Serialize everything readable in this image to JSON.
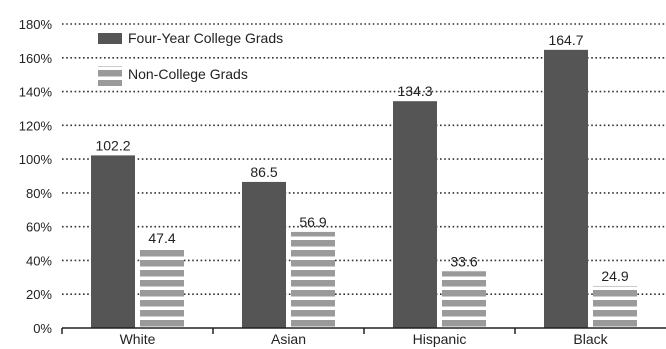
{
  "chart_data": {
    "type": "bar",
    "categories": [
      "White",
      "Asian",
      "Hispanic",
      "Black"
    ],
    "series": [
      {
        "name": "Four-Year College Grads",
        "values": [
          102.2,
          86.5,
          134.3,
          164.7
        ],
        "labels": [
          "102.2",
          "86.5",
          "134.3",
          "164.7"
        ],
        "color": "#555555",
        "pattern": "solid"
      },
      {
        "name": "Non-College Grads",
        "values": [
          47.4,
          56.9,
          33.6,
          24.9
        ],
        "labels": [
          "47.4",
          "56.9",
          "33.6",
          "24.9"
        ],
        "color": "#9a9a9a",
        "pattern": "horizontal-stripes"
      }
    ],
    "ylim": [
      0,
      180
    ],
    "yticks": [
      0,
      20,
      40,
      60,
      80,
      100,
      120,
      140,
      160,
      180
    ],
    "ytick_labels": [
      "0%",
      "20%",
      "40%",
      "60%",
      "80%",
      "100%",
      "120%",
      "140%",
      "160%",
      "180%"
    ],
    "grid": "dotted-horizontal",
    "legend_position": "top-left",
    "title": "",
    "xlabel": "",
    "ylabel": ""
  }
}
